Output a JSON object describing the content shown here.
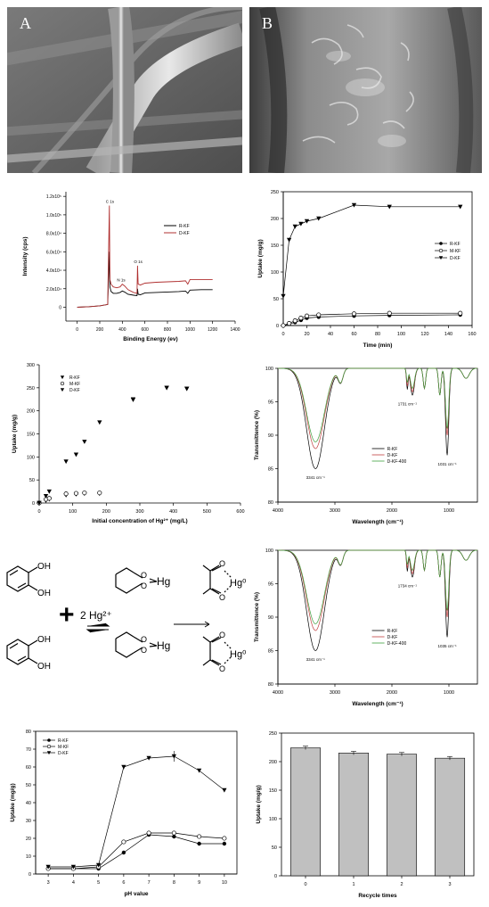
{
  "panels": {
    "A": {
      "label": "A"
    },
    "B": {
      "label": "B"
    }
  },
  "chart_data": [
    {
      "id": "xps",
      "type": "line",
      "xlabel": "Binding Energy (ev)",
      "ylabel": "Intensity (cps)",
      "xticks": [
        "0",
        "200",
        "400",
        "600",
        "800",
        "1000",
        "1200",
        "1400"
      ],
      "yticks": [
        "0",
        "2.0x10⁴",
        "4.0x10⁴",
        "6.0x10⁴",
        "8.0x10⁴",
        "1.0x10⁵",
        "1.2x10⁵"
      ],
      "xlim": [
        -100,
        1400
      ],
      "ylim": [
        -15000,
        125000
      ],
      "annotations": [
        "C 1s",
        "O 1s",
        "N 1s"
      ],
      "series": [
        {
          "name": "R-KF",
          "color": "#000000",
          "x": [
            0,
            100,
            200,
            270,
            285,
            290,
            300,
            320,
            350,
            380,
            400,
            420,
            450,
            500,
            530,
            535,
            540,
            560,
            600,
            700,
            800,
            900,
            960,
            980,
            1000,
            1100,
            1200
          ],
          "y": [
            0,
            500,
            1500,
            3000,
            60000,
            22000,
            17000,
            15000,
            15000,
            16000,
            17500,
            16500,
            14000,
            13000,
            12500,
            20000,
            14000,
            13500,
            15500,
            16000,
            16500,
            17000,
            17500,
            15000,
            18500,
            19000,
            19000
          ]
        },
        {
          "name": "D-KF",
          "color": "#b03030",
          "x": [
            0,
            100,
            200,
            270,
            285,
            290,
            300,
            320,
            350,
            380,
            400,
            420,
            450,
            500,
            530,
            535,
            540,
            560,
            600,
            700,
            800,
            900,
            960,
            980,
            1000,
            1100,
            1200
          ],
          "y": [
            0,
            500,
            1500,
            3000,
            110000,
            30000,
            25000,
            22000,
            21000,
            22000,
            25000,
            23000,
            19000,
            16000,
            15000,
            45000,
            25000,
            24000,
            26000,
            27000,
            27500,
            28000,
            28500,
            25000,
            30000,
            30000,
            30000
          ]
        }
      ]
    },
    {
      "id": "kinetics",
      "type": "line",
      "xlabel": "Time (min)",
      "ylabel": "Uptake (mg/g)",
      "xticks": [
        "0",
        "20",
        "40",
        "60",
        "80",
        "100",
        "120",
        "140",
        "160"
      ],
      "yticks": [
        "0",
        "50",
        "100",
        "150",
        "200",
        "250"
      ],
      "xlim": [
        0,
        160
      ],
      "ylim": [
        0,
        250
      ],
      "series": [
        {
          "name": "R-KF",
          "marker": "circle-filled",
          "x": [
            0,
            5,
            10,
            15,
            20,
            30,
            60,
            90,
            150
          ],
          "y": [
            0,
            3,
            6,
            10,
            14,
            16,
            18,
            19,
            20
          ]
        },
        {
          "name": "M-KF",
          "marker": "circle-open",
          "x": [
            0,
            5,
            10,
            15,
            20,
            30,
            60,
            90,
            150
          ],
          "y": [
            0,
            4,
            9,
            14,
            18,
            20,
            22,
            23,
            23
          ]
        },
        {
          "name": "D-KF",
          "marker": "triangle-down",
          "x": [
            0,
            5,
            10,
            15,
            20,
            30,
            60,
            90,
            150
          ],
          "y": [
            55,
            160,
            185,
            190,
            195,
            200,
            225,
            222,
            222
          ]
        }
      ]
    },
    {
      "id": "isotherm",
      "type": "scatter",
      "xlabel": "Initial concentration of Hg²⁺ (mg/L)",
      "ylabel": "Uptake (mg/g)",
      "xticks": [
        "0",
        "100",
        "200",
        "300",
        "400",
        "500",
        "600"
      ],
      "yticks": [
        "0",
        "50",
        "100",
        "150",
        "200",
        "250",
        "300"
      ],
      "xlim": [
        0,
        600
      ],
      "ylim": [
        0,
        300
      ],
      "series": [
        {
          "name": "R-KF",
          "marker": "triangle-down-filled",
          "x": [
            0,
            20,
            30,
            80,
            110,
            135,
            180,
            280,
            380,
            440
          ],
          "y": [
            0,
            5,
            8,
            17,
            19,
            20,
            20,
            224,
            250,
            248
          ]
        },
        {
          "name": "M-KF",
          "marker": "circle-open",
          "x": [
            0,
            20,
            30,
            80,
            110,
            135,
            180
          ],
          "y": [
            0,
            8,
            10,
            20,
            21,
            22,
            22
          ]
        },
        {
          "name": "D-KF",
          "marker": "triangle-down",
          "x": [
            0,
            20,
            30,
            80,
            110,
            135,
            180,
            280,
            380,
            440
          ],
          "y": [
            0,
            15,
            25,
            90,
            105,
            133,
            175,
            225,
            250,
            248
          ]
        }
      ]
    },
    {
      "id": "ftir1",
      "type": "line",
      "xlabel": "Wavelength (cm⁻¹)",
      "ylabel": "Transmittence (%)",
      "xticks": [
        "4000",
        "3000",
        "2000",
        "1000"
      ],
      "yticks": [
        "80",
        "85",
        "90",
        "95",
        "100"
      ],
      "xlim": [
        4000,
        500
      ],
      "ylim": [
        80,
        100
      ],
      "annotations": [
        "3341 cm⁻¹",
        "1731 cm⁻¹",
        "1031 cm⁻¹"
      ],
      "series": [
        {
          "name": "R-KF",
          "color": "#000000"
        },
        {
          "name": "D-KF",
          "color": "#c04040"
        },
        {
          "name": "D-KF-400",
          "color": "#40a040"
        }
      ]
    },
    {
      "id": "ftir2",
      "type": "line",
      "xlabel": "Wavelength (cm⁻¹)",
      "ylabel": "Transmittence (%)",
      "xticks": [
        "4000",
        "3000",
        "2000",
        "1000"
      ],
      "yticks": [
        "80",
        "85",
        "90",
        "95",
        "100"
      ],
      "xlim": [
        4000,
        500
      ],
      "ylim": [
        80,
        100
      ],
      "annotations": [
        "3341 cm⁻¹",
        "1734 cm⁻¹",
        "1035 cm⁻¹"
      ],
      "series": [
        {
          "name": "R-KF",
          "color": "#000000"
        },
        {
          "name": "D-KF",
          "color": "#c04040"
        },
        {
          "name": "D-KF-400",
          "color": "#40a040"
        }
      ]
    },
    {
      "id": "ph",
      "type": "line",
      "xlabel": "pH value",
      "ylabel": "Uptake (mg/g)",
      "xticks": [
        "3",
        "4",
        "5",
        "6",
        "7",
        "8",
        "9",
        "10"
      ],
      "yticks": [
        "0",
        "10",
        "20",
        "30",
        "40",
        "50",
        "60",
        "70",
        "80"
      ],
      "xlim": [
        2.5,
        10.5
      ],
      "ylim": [
        0,
        80
      ],
      "series": [
        {
          "name": "R-KF",
          "marker": "circle-filled",
          "x": [
            3,
            4,
            5,
            6,
            7,
            8,
            9,
            10
          ],
          "y": [
            3,
            3,
            3,
            12,
            22,
            21,
            17,
            17
          ]
        },
        {
          "name": "M-KF",
          "marker": "circle-open",
          "x": [
            3,
            4,
            5,
            6,
            7,
            8,
            9,
            10
          ],
          "y": [
            3,
            3,
            4,
            18,
            23,
            23,
            21,
            20
          ]
        },
        {
          "name": "D-KF",
          "marker": "triangle-down",
          "x": [
            3,
            4,
            5,
            6,
            7,
            8,
            9,
            10
          ],
          "y": [
            4,
            4,
            5,
            60,
            65,
            66,
            58,
            47
          ]
        }
      ]
    },
    {
      "id": "recycle",
      "type": "bar",
      "xlabel": "Recycle times",
      "ylabel": "Uptake (mg/g)",
      "categories": [
        "0",
        "1",
        "2",
        "3"
      ],
      "values": [
        224,
        215,
        213,
        206
      ],
      "yticks": [
        "0",
        "50",
        "100",
        "150",
        "200",
        "250"
      ],
      "ylim": [
        0,
        250
      ]
    }
  ],
  "scheme": {
    "reagent": "2 Hg²⁺",
    "plus": "+",
    "oh": "OH",
    "hg": "Hg",
    "hg0": "Hg⁰",
    "o": "O"
  },
  "colors": {
    "bar": "#c0c0c0",
    "d_kf_xps": "#b03030"
  }
}
